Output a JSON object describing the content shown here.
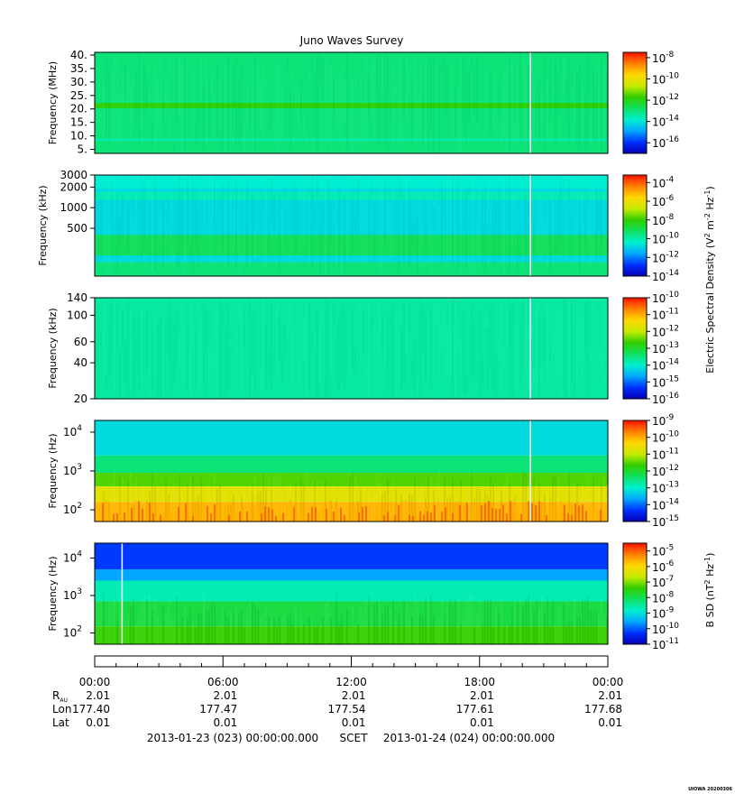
{
  "title": "Juno Waves Survey",
  "colors": {
    "background": "#ffffff",
    "spectrogram_scale": [
      "#0000b0",
      "#0030ff",
      "#00a8ff",
      "#00f0d0",
      "#10e060",
      "#30d000",
      "#c8e800",
      "#ffd800",
      "#ff8000",
      "#ff1000"
    ]
  },
  "chart_data": [
    {
      "type": "heatmap",
      "ylabel": "Frequency (MHz)",
      "y_scale": "linear",
      "ylim": [
        3.5,
        41
      ],
      "yticks": [
        {
          "v": 40,
          "label": "40."
        },
        {
          "v": 35,
          "label": "35."
        },
        {
          "v": 30,
          "label": "30."
        },
        {
          "v": 25,
          "label": "25."
        },
        {
          "v": 20,
          "label": "20."
        },
        {
          "v": 15,
          "label": "15."
        },
        {
          "v": 10,
          "label": "10."
        },
        {
          "v": 5,
          "label": "5."
        }
      ],
      "colorbar": {
        "exponents": [
          "-8",
          "-10",
          "-12",
          "-14",
          "-16"
        ],
        "range_exp": [
          -17,
          -7.5
        ]
      },
      "bands": [
        {
          "from": 3.5,
          "to": 41,
          "level": 0.42
        },
        {
          "from": 20.3,
          "to": 22.2,
          "level": 0.55
        },
        {
          "from": 8.2,
          "to": 9.0,
          "level": 0.36
        }
      ],
      "gap_at_hours": [
        20.35
      ]
    },
    {
      "type": "heatmap",
      "ylabel": "Frequency (kHz)",
      "y_scale": "log",
      "ylim": [
        100,
        3000
      ],
      "yticks": [
        {
          "v": 3000,
          "label": "3000"
        },
        {
          "v": 2000,
          "label": "2000"
        },
        {
          "v": 1000,
          "label": "1000"
        },
        {
          "v": 500,
          "label": "500"
        }
      ],
      "colorbar": {
        "exponents": [
          "-4",
          "-6",
          "-8",
          "-10",
          "-12",
          "-14"
        ],
        "range_exp": [
          -14,
          -3.2
        ]
      },
      "bands": [
        {
          "from": 100,
          "to": 3000,
          "level": 0.3
        },
        {
          "from": 1300,
          "to": 1700,
          "level": 0.36
        },
        {
          "from": 1900,
          "to": 3000,
          "level": 0.33
        },
        {
          "from": 200,
          "to": 400,
          "level": 0.45
        },
        {
          "from": 100,
          "to": 160,
          "level": 0.42
        }
      ],
      "gap_at_hours": [
        20.35
      ]
    },
    {
      "type": "heatmap",
      "ylabel": "Frequency (kHz)",
      "y_scale": "log",
      "ylim": [
        20,
        140
      ],
      "yticks": [
        {
          "v": 140,
          "label": "140"
        },
        {
          "v": 100,
          "label": "100"
        },
        {
          "v": 60,
          "label": "60"
        },
        {
          "v": 40,
          "label": "40"
        },
        {
          "v": 20,
          "label": "20"
        }
      ],
      "colorbar": {
        "exponents": [
          "-10",
          "-11",
          "-12",
          "-13",
          "-14",
          "-15",
          "-16"
        ],
        "range_exp": [
          -16,
          -10
        ]
      },
      "bands": [
        {
          "from": 20,
          "to": 140,
          "level": 0.38
        }
      ],
      "gap_at_hours": [
        20.35
      ]
    },
    {
      "type": "heatmap",
      "ylabel": "Frequency (Hz)",
      "y_scale": "log",
      "ylim": [
        50,
        20000
      ],
      "yticks": [
        {
          "v": 10000,
          "label": "10",
          "exp": "4"
        },
        {
          "v": 1000,
          "label": "10",
          "exp": "3"
        },
        {
          "v": 100,
          "label": "10",
          "exp": "2"
        }
      ],
      "colorbar": {
        "exponents": [
          "-9",
          "-10",
          "-11",
          "-12",
          "-13",
          "-14",
          "-15"
        ],
        "range_exp": [
          -15,
          -9
        ]
      },
      "bands": [
        {
          "from": 2500,
          "to": 20000,
          "level": 0.3
        },
        {
          "from": 900,
          "to": 2500,
          "level": 0.42
        },
        {
          "from": 400,
          "to": 900,
          "level": 0.58
        },
        {
          "from": 160,
          "to": 400,
          "level": 0.72
        },
        {
          "from": 50,
          "to": 160,
          "level": 0.82
        }
      ],
      "gap_at_hours": [
        20.35
      ]
    },
    {
      "type": "heatmap",
      "ylabel": "Frequency (Hz)",
      "y_scale": "log",
      "ylim": [
        50,
        25000
      ],
      "yticks": [
        {
          "v": 10000,
          "label": "10",
          "exp": "4"
        },
        {
          "v": 1000,
          "label": "10",
          "exp": "3"
        },
        {
          "v": 100,
          "label": "10",
          "exp": "2"
        }
      ],
      "colorbar": {
        "exponents": [
          "-5",
          "-6",
          "-7",
          "-8",
          "-9",
          "-10",
          "-11"
        ],
        "range_exp": [
          -11,
          -4.5
        ]
      },
      "bands": [
        {
          "from": 5000,
          "to": 25000,
          "level": 0.12
        },
        {
          "from": 2500,
          "to": 5000,
          "level": 0.22
        },
        {
          "from": 700,
          "to": 2500,
          "level": 0.36
        },
        {
          "from": 150,
          "to": 700,
          "level": 0.48
        },
        {
          "from": 50,
          "to": 150,
          "level": 0.56
        }
      ],
      "gap_at_hours": [
        1.25
      ]
    }
  ],
  "colorbar_labels": {
    "electric": "Electric Spectral Density (V² m⁻² Hz⁻¹)",
    "magnetic": "B SD (nT² Hz⁻¹)"
  },
  "colorbar_label_parts": {
    "electric": {
      "pre": "Electric Spectral Density (V",
      "sup1": "2",
      "mid": " m",
      "sup2": "-2",
      "mid2": " Hz",
      "sup3": "-1",
      "post": ")"
    },
    "magnetic": {
      "pre": "B SD (nT",
      "sup1": "2",
      "mid": " Hz",
      "sup2": "-1",
      "post": ")"
    }
  },
  "colorbar_base": "10",
  "time_axis": {
    "ticks": [
      {
        "hours": 0,
        "label": "00:00"
      },
      {
        "hours": 6,
        "label": "06:00"
      },
      {
        "hours": 12,
        "label": "12:00"
      },
      {
        "hours": 18,
        "label": "18:00"
      },
      {
        "hours": 24,
        "label": "00:00"
      }
    ],
    "rows": [
      {
        "name": "R",
        "sub": "AU",
        "values": [
          "2.01",
          "2.01",
          "2.01",
          "2.01",
          "2.01"
        ]
      },
      {
        "name": "Lon",
        "values": [
          "177.40",
          "177.47",
          "177.54",
          "177.61",
          "177.68"
        ]
      },
      {
        "name": "Lat",
        "values": [
          "0.01",
          "0.01",
          "0.01",
          "0.01",
          "0.01"
        ]
      }
    ],
    "range_start": "2013-01-23 (023) 00:00:00.000",
    "range_label": "SCET",
    "range_end": "2013-01-24 (024) 00:00:00.000"
  },
  "footer": "UIOWA 20200306"
}
